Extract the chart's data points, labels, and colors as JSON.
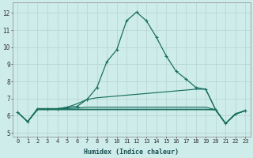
{
  "xlabel": "Humidex (Indice chaleur)",
  "background_color": "#ceecea",
  "grid_color": "#b8d8d4",
  "line_color": "#1a7060",
  "xlim": [
    -0.5,
    23.5
  ],
  "ylim": [
    4.8,
    12.6
  ],
  "yticks": [
    5,
    6,
    7,
    8,
    9,
    10,
    11,
    12
  ],
  "xticks": [
    0,
    1,
    2,
    3,
    4,
    5,
    6,
    7,
    8,
    9,
    10,
    11,
    12,
    13,
    14,
    15,
    16,
    17,
    18,
    19,
    20,
    21,
    22,
    23
  ],
  "series_with_markers": [
    [
      6.2,
      5.65,
      6.4,
      6.4,
      6.4,
      6.5,
      6.55,
      6.95,
      7.65,
      9.15,
      9.85,
      11.55,
      12.05,
      11.55,
      10.6,
      9.5,
      8.6,
      8.15,
      7.65,
      7.55,
      6.35,
      5.55,
      6.1,
      6.3
    ]
  ],
  "series_no_markers": [
    [
      6.2,
      5.65,
      6.4,
      6.4,
      6.4,
      6.5,
      6.7,
      6.95,
      7.05,
      7.1,
      7.15,
      7.2,
      7.25,
      7.3,
      7.35,
      7.4,
      7.45,
      7.5,
      7.55,
      7.55,
      6.35,
      5.55,
      6.1,
      6.3
    ],
    [
      6.2,
      5.65,
      6.38,
      6.38,
      6.38,
      6.38,
      6.38,
      6.38,
      6.38,
      6.38,
      6.38,
      6.38,
      6.38,
      6.38,
      6.38,
      6.38,
      6.38,
      6.38,
      6.38,
      6.38,
      6.35,
      5.55,
      6.1,
      6.3
    ],
    [
      6.2,
      5.65,
      6.35,
      6.35,
      6.35,
      6.35,
      6.35,
      6.35,
      6.35,
      6.35,
      6.35,
      6.35,
      6.35,
      6.35,
      6.35,
      6.35,
      6.35,
      6.35,
      6.35,
      6.35,
      6.35,
      5.55,
      6.1,
      6.3
    ],
    [
      6.2,
      5.65,
      6.42,
      6.42,
      6.42,
      6.42,
      6.45,
      6.5,
      6.5,
      6.5,
      6.5,
      6.5,
      6.5,
      6.5,
      6.5,
      6.5,
      6.5,
      6.5,
      6.5,
      6.5,
      6.35,
      5.55,
      6.1,
      6.3
    ]
  ]
}
